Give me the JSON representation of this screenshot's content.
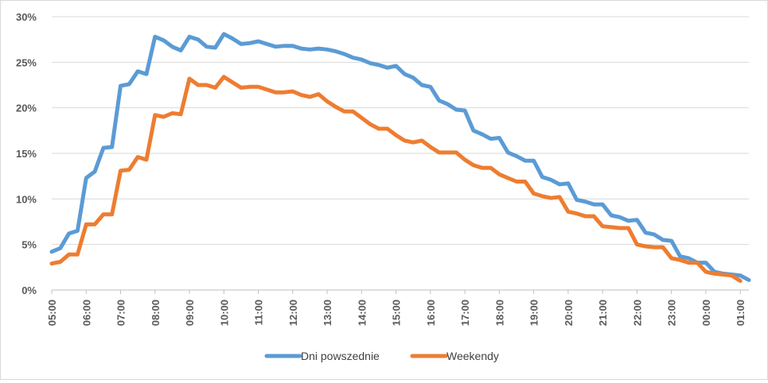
{
  "chart_data": {
    "type": "line",
    "title": "",
    "xlabel": "",
    "ylabel": "",
    "ylim": [
      0,
      30
    ],
    "ytick_labels": [
      "0%",
      "5%",
      "10%",
      "15%",
      "20%",
      "25%",
      "30%"
    ],
    "x_tick_labels": [
      "05:00",
      "06:00",
      "07:00",
      "08:00",
      "09:00",
      "10:00",
      "11:00",
      "12:00",
      "13:00",
      "14:00",
      "15:00",
      "16:00",
      "17:00",
      "18:00",
      "19:00",
      "20:00",
      "21:00",
      "22:00",
      "23:00",
      "00:00",
      "01:00"
    ],
    "points_per_hour": 4,
    "grid": true,
    "legend_position": "bottom",
    "series": [
      {
        "name": "Dni powszednie",
        "color": "#5b9bd5",
        "values": [
          4.2,
          4.6,
          6.2,
          6.5,
          12.3,
          13.0,
          15.6,
          15.7,
          22.4,
          22.6,
          24.0,
          23.7,
          27.8,
          27.4,
          26.7,
          26.3,
          27.8,
          27.5,
          26.7,
          26.6,
          28.1,
          27.6,
          27.0,
          27.1,
          27.3,
          27.0,
          26.7,
          26.8,
          26.8,
          26.5,
          26.4,
          26.5,
          26.4,
          26.2,
          25.9,
          25.5,
          25.3,
          24.9,
          24.7,
          24.4,
          24.6,
          23.7,
          23.3,
          22.5,
          22.3,
          20.8,
          20.4,
          19.8,
          19.7,
          17.5,
          17.1,
          16.6,
          16.7,
          15.1,
          14.7,
          14.2,
          14.2,
          12.4,
          12.1,
          11.6,
          11.7,
          9.9,
          9.7,
          9.4,
          9.4,
          8.2,
          8.0,
          7.6,
          7.7,
          6.3,
          6.1,
          5.5,
          5.4,
          3.7,
          3.5,
          3.0,
          3.0,
          2.0,
          1.8,
          1.7,
          1.6,
          1.1
        ]
      },
      {
        "name": "Weekendy",
        "color": "#ed7d31",
        "values": [
          2.9,
          3.1,
          3.9,
          3.9,
          7.2,
          7.2,
          8.3,
          8.3,
          13.1,
          13.2,
          14.6,
          14.3,
          19.2,
          19.0,
          19.4,
          19.3,
          23.2,
          22.5,
          22.5,
          22.2,
          23.4,
          22.8,
          22.2,
          22.3,
          22.3,
          22.0,
          21.7,
          21.7,
          21.8,
          21.4,
          21.2,
          21.5,
          20.7,
          20.1,
          19.6,
          19.6,
          18.9,
          18.2,
          17.7,
          17.7,
          17.0,
          16.4,
          16.2,
          16.4,
          15.7,
          15.1,
          15.1,
          15.1,
          14.3,
          13.7,
          13.4,
          13.4,
          12.7,
          12.3,
          11.9,
          11.9,
          10.6,
          10.3,
          10.1,
          10.2,
          8.6,
          8.4,
          8.1,
          8.1,
          7.0,
          6.9,
          6.8,
          6.8,
          5.0,
          4.8,
          4.7,
          4.7,
          3.5,
          3.3,
          3.0,
          3.0,
          2.0,
          1.8,
          1.7,
          1.6,
          1.0
        ]
      }
    ]
  }
}
